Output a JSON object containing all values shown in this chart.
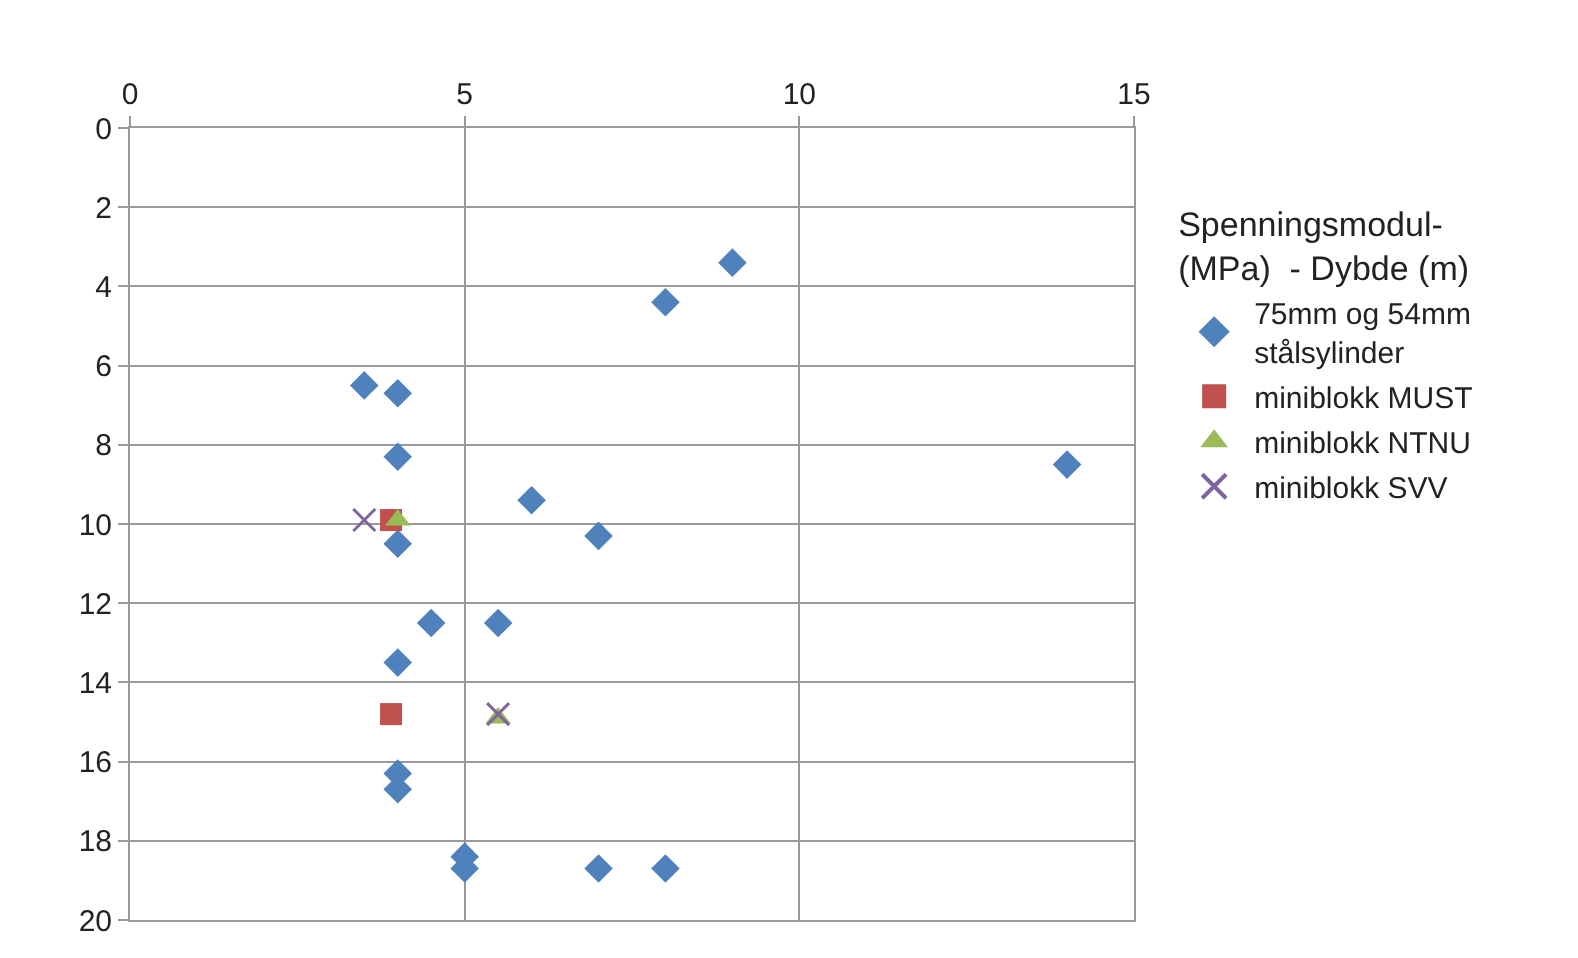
{
  "chart_data": {
    "type": "scatter",
    "legend_title": "Spenningsmodul- (MPa)  - Dybde (m)",
    "xlim": [
      0,
      15
    ],
    "xticks": [
      0,
      5,
      10,
      15
    ],
    "ylim": [
      20,
      0
    ],
    "yticks": [
      0,
      2,
      4,
      6,
      8,
      10,
      12,
      14,
      16,
      18,
      20
    ],
    "grid": true,
    "legend": "right",
    "series": [
      {
        "name": "75mm og 54mm stålsylinder",
        "color": "#4f81bd",
        "marker": "diamond",
        "x": [
          9.0,
          8.0,
          3.5,
          4.0,
          4.0,
          14.0,
          6.0,
          7.0,
          4.0,
          4.5,
          5.5,
          4.0,
          4.0,
          4.0,
          5.0,
          5.0,
          7.0,
          8.0
        ],
        "values": [
          3.4,
          4.4,
          6.5,
          6.7,
          8.3,
          8.5,
          9.4,
          10.3,
          10.5,
          12.5,
          12.5,
          13.5,
          16.3,
          16.7,
          18.4,
          18.7,
          18.7,
          18.7
        ]
      },
      {
        "name": "miniblokk MUST",
        "color": "#c0504d",
        "marker": "square",
        "x": [
          3.9,
          3.9
        ],
        "values": [
          9.9,
          14.8
        ]
      },
      {
        "name": "miniblokk NTNU",
        "color": "#9bbb59",
        "marker": "triangle",
        "x": [
          4.0,
          5.5
        ],
        "values": [
          9.9,
          14.9
        ]
      },
      {
        "name": "miniblokk SVV",
        "color": "#8064a2",
        "marker": "cross",
        "x": [
          3.5,
          5.5
        ],
        "values": [
          9.9,
          14.8
        ]
      }
    ]
  }
}
